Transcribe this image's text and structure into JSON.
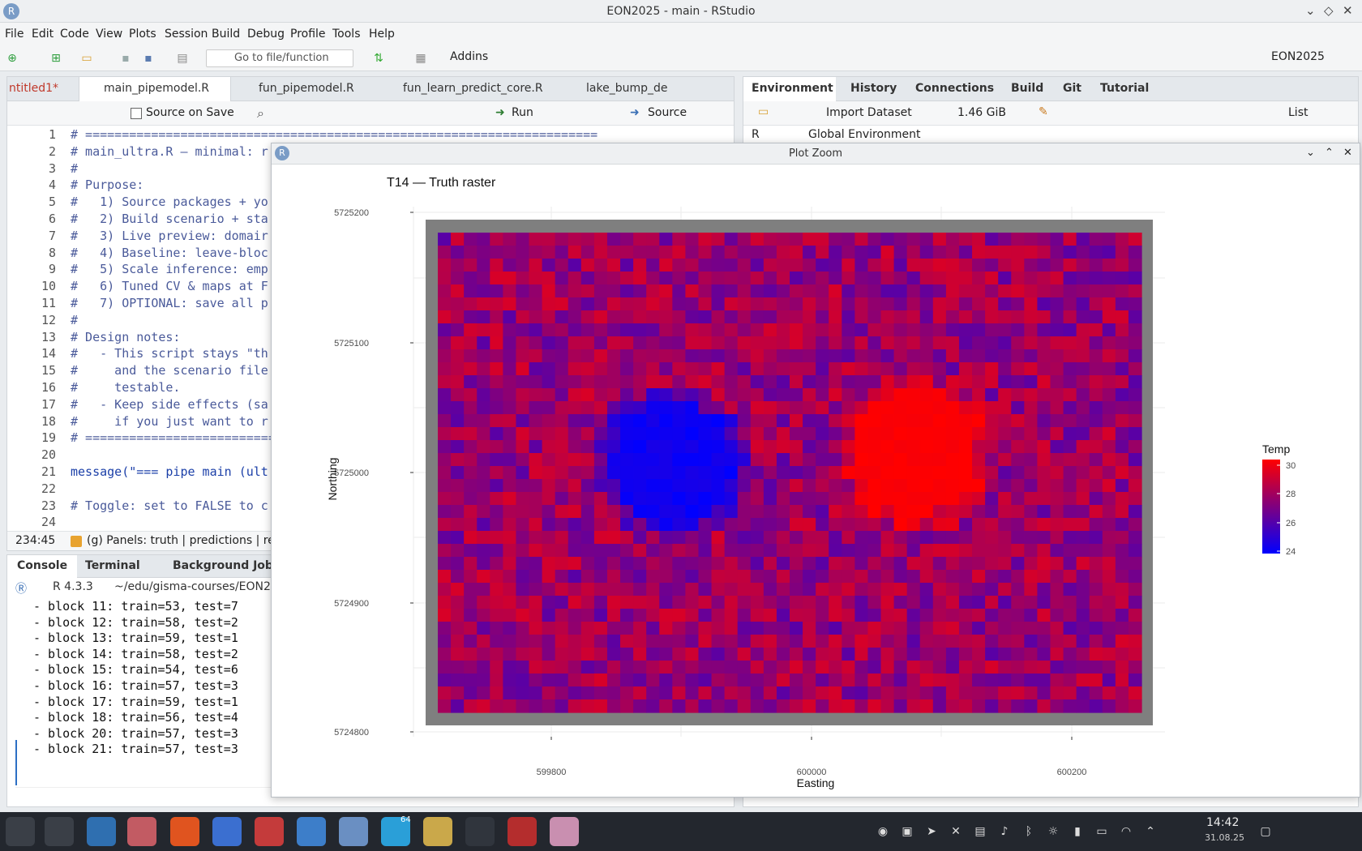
{
  "window": {
    "title": "EON2025 - main - RStudio",
    "logo": "R"
  },
  "menu": [
    "File",
    "Edit",
    "Code",
    "View",
    "Plots",
    "Session",
    "Build",
    "Debug",
    "Profile",
    "Tools",
    "Help"
  ],
  "toolbar": {
    "goto_placeholder": "Go to file/function",
    "addins": "Addins",
    "project": "EON2025"
  },
  "editor": {
    "tabs": [
      "ntitled1*",
      "main_pipemodel.R",
      "fun_pipemodel.R",
      "fun_learn_predict_core.R",
      "lake_bump_de"
    ],
    "source_on_save": "Source on Save",
    "run": "Run",
    "source": "Source",
    "lines": [
      {
        "n": "1",
        "t": "# ======================================================================"
      },
      {
        "n": "2",
        "t": "# main_ultra.R — minimal: r"
      },
      {
        "n": "3",
        "t": "#"
      },
      {
        "n": "4",
        "t": "# Purpose:"
      },
      {
        "n": "5",
        "t": "#   1) Source packages + yo"
      },
      {
        "n": "6",
        "t": "#   2) Build scenario + sta"
      },
      {
        "n": "7",
        "t": "#   3) Live preview: domair"
      },
      {
        "n": "8",
        "t": "#   4) Baseline: leave-bloc"
      },
      {
        "n": "9",
        "t": "#   5) Scale inference: emp"
      },
      {
        "n": "10",
        "t": "#   6) Tuned CV & maps at F"
      },
      {
        "n": "11",
        "t": "#   7) OPTIONAL: save all p"
      },
      {
        "n": "12",
        "t": "#"
      },
      {
        "n": "13",
        "t": "# Design notes:"
      },
      {
        "n": "14",
        "t": "#   - This script stays \"th"
      },
      {
        "n": "15",
        "t": "#     and the scenario file"
      },
      {
        "n": "16",
        "t": "#     testable."
      },
      {
        "n": "17",
        "t": "#   - Keep side effects (sa"
      },
      {
        "n": "18",
        "t": "#     if you just want to r"
      },
      {
        "n": "19",
        "t": "# ================================"
      },
      {
        "n": "20",
        "t": ""
      },
      {
        "n": "21",
        "t": "message(\"=== pipe main (ult"
      },
      {
        "n": "22",
        "t": ""
      },
      {
        "n": "23",
        "t": "# Toggle: set to FALSE to c"
      },
      {
        "n": "24",
        "t": ""
      }
    ],
    "status_pos": "234:45",
    "status_section": "(g) Panels: truth | predictions | re"
  },
  "console": {
    "tabs": [
      "Console",
      "Terminal",
      "Background Job"
    ],
    "r_version": "R 4.3.3",
    "path": "~/edu/gisma-courses/EON20",
    "lines": [
      "- block 11: train=53, test=7",
      "- block 12: train=58, test=2",
      "- block 13: train=59, test=1",
      "- block 14: train=58, test=2",
      "- block 15: train=54, test=6",
      "- block 16: train=57, test=3",
      "- block 17: train=59, test=1",
      "- block 18: train=56, test=4",
      "- block 20: train=57, test=3",
      "- block 21: train=57, test=3"
    ]
  },
  "env": {
    "tabs": [
      "Environment",
      "History",
      "Connections",
      "Build",
      "Git",
      "Tutorial"
    ],
    "import": "Import Dataset",
    "memory": "1.46 GiB",
    "list": "List",
    "lang": "R",
    "scope": "Global Environment"
  },
  "plot_window": {
    "title": "Plot Zoom"
  },
  "chart_data": {
    "type": "heatmap",
    "title": "T14 — Truth raster",
    "xlabel": "Easting",
    "ylabel": "Northing",
    "x_ticks": [
      "599800",
      "600000",
      "600200"
    ],
    "y_ticks": [
      "5725200",
      "5725100",
      "5725000",
      "5724900",
      "5724800"
    ],
    "legend_title": "Temp",
    "legend_ticks": [
      "30",
      "28",
      "26",
      "24"
    ],
    "value_range": [
      24,
      30
    ],
    "colors": {
      "low": "#0000ff",
      "high": "#ff0000",
      "frame": "#7f7f7f"
    },
    "grid": true,
    "legend_position": "right"
  },
  "taskbar": {
    "time": "14:42",
    "date": "31.08.25",
    "badge": "64"
  }
}
